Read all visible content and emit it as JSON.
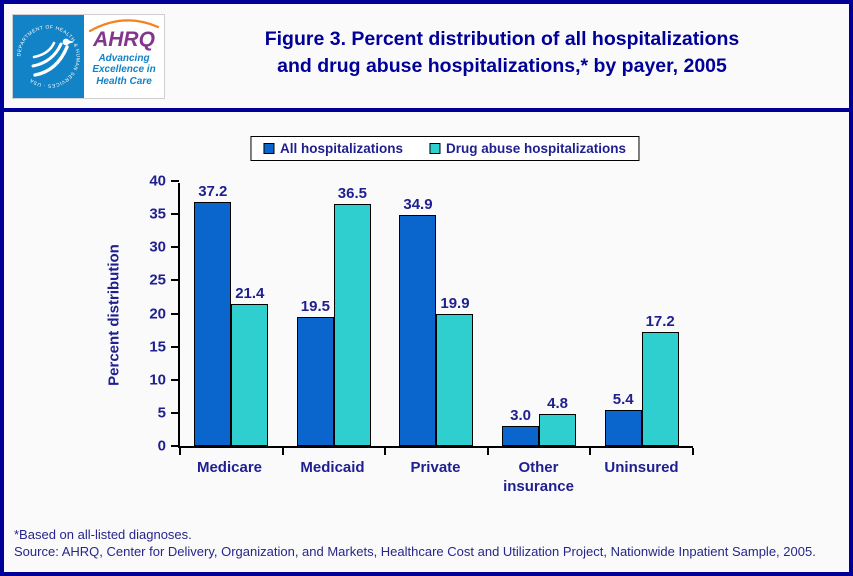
{
  "window": {
    "border_color": "#000099",
    "background": "#FAFAFA"
  },
  "header": {
    "title_line1": "Figure 3. Percent distribution of all hospitalizations",
    "title_line2": "and drug abuse hospitalizations,* by payer, 2005",
    "logo": {
      "org": "AHRQ",
      "seal_text": "DEPARTMENT OF HEALTH & HUMAN SERVICES · USA",
      "tagline_line1": "Advancing",
      "tagline_line2": "Excellence in",
      "tagline_line3": "Health Care"
    }
  },
  "chart_data": {
    "type": "bar",
    "title": "",
    "categories": [
      "Medicare",
      "Medicaid",
      "Private",
      "Other insurance",
      "Uninsured"
    ],
    "series": [
      {
        "name": "All hospitalizations",
        "color": "#0A66CC",
        "values": [
          37.2,
          19.5,
          34.9,
          3.0,
          5.4
        ]
      },
      {
        "name": "Drug abuse hospitalizations",
        "color": "#30CFCF",
        "values": [
          21.4,
          36.5,
          19.9,
          4.8,
          17.2
        ]
      }
    ],
    "xlabel": "",
    "ylabel": "Percent distribution",
    "ylim": [
      0,
      40
    ],
    "ytick_step": 5,
    "grid": false,
    "legend_position": "top",
    "value_label_decimals": 1
  },
  "footnotes": {
    "line1": "*Based on all-listed diagnoses.",
    "line2": "Source: AHRQ, Center for Delivery, Organization, and Markets, Healthcare Cost and Utilization Project, Nationwide Inpatient Sample, 2005."
  }
}
